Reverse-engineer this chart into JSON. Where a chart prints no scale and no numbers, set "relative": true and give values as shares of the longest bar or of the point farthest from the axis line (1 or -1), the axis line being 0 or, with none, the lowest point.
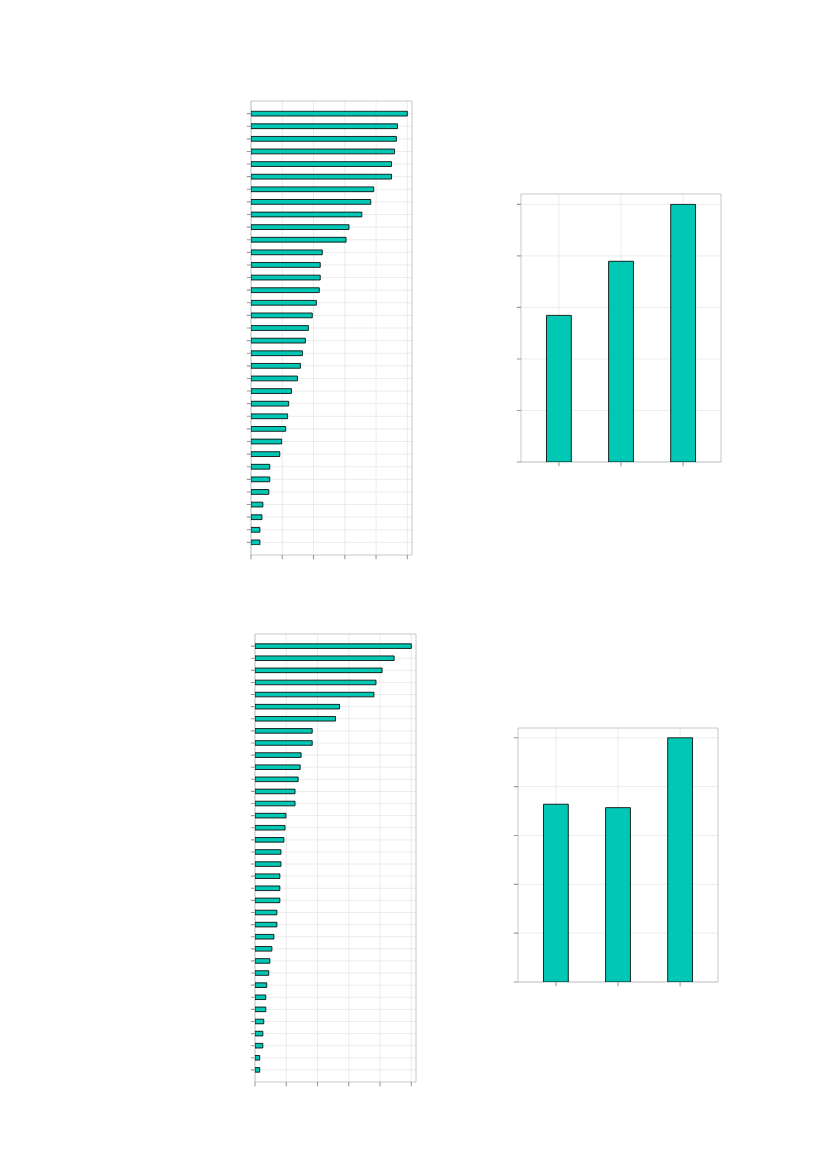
{
  "chart_data": [
    {
      "type": "bar",
      "orientation": "horizontal",
      "relative": true,
      "grid": true,
      "color": "#00c8b4",
      "categories": [
        null,
        null,
        null,
        null,
        null,
        null,
        null,
        null,
        null,
        null,
        null,
        null,
        null,
        null,
        null,
        null,
        null,
        null,
        null,
        null,
        null,
        null,
        null,
        null,
        null,
        null,
        null,
        null,
        null,
        null,
        null,
        null,
        null,
        null,
        null
      ],
      "values": [
        1,
        0.937,
        0.93,
        0.918,
        0.899,
        0.899,
        0.785,
        0.766,
        0.709,
        0.627,
        0.608,
        0.456,
        0.443,
        0.443,
        0.437,
        0.418,
        0.392,
        0.367,
        0.348,
        0.329,
        0.316,
        0.297,
        0.259,
        0.241,
        0.234,
        0.222,
        0.196,
        0.184,
        0.12,
        0.12,
        0.114,
        0.076,
        0.07,
        0.057,
        0.057
      ]
    },
    {
      "type": "bar",
      "relative": true,
      "grid": true,
      "color": "#00c8b4",
      "categories": [
        null,
        null,
        null
      ],
      "values": [
        0.569,
        0.779,
        1
      ]
    },
    {
      "type": "bar",
      "orientation": "horizontal",
      "relative": true,
      "grid": true,
      "color": "#00c8b4",
      "categories": [
        null,
        null,
        null,
        null,
        null,
        null,
        null,
        null,
        null,
        null,
        null,
        null,
        null,
        null,
        null,
        null,
        null,
        null,
        null,
        null,
        null,
        null,
        null,
        null,
        null,
        null,
        null,
        null,
        null,
        null,
        null,
        null,
        null,
        null,
        null,
        null
      ],
      "values": [
        1,
        0.89,
        0.813,
        0.774,
        0.761,
        0.541,
        0.515,
        0.366,
        0.366,
        0.295,
        0.289,
        0.276,
        0.256,
        0.256,
        0.198,
        0.192,
        0.185,
        0.166,
        0.166,
        0.159,
        0.159,
        0.159,
        0.14,
        0.14,
        0.121,
        0.108,
        0.095,
        0.088,
        0.075,
        0.069,
        0.069,
        0.056,
        0.05,
        0.05,
        0.03,
        0.03
      ]
    },
    {
      "type": "bar",
      "relative": true,
      "grid": true,
      "color": "#00c8b4",
      "categories": [
        null,
        null,
        null
      ],
      "values": [
        0.728,
        0.714,
        1
      ]
    }
  ]
}
